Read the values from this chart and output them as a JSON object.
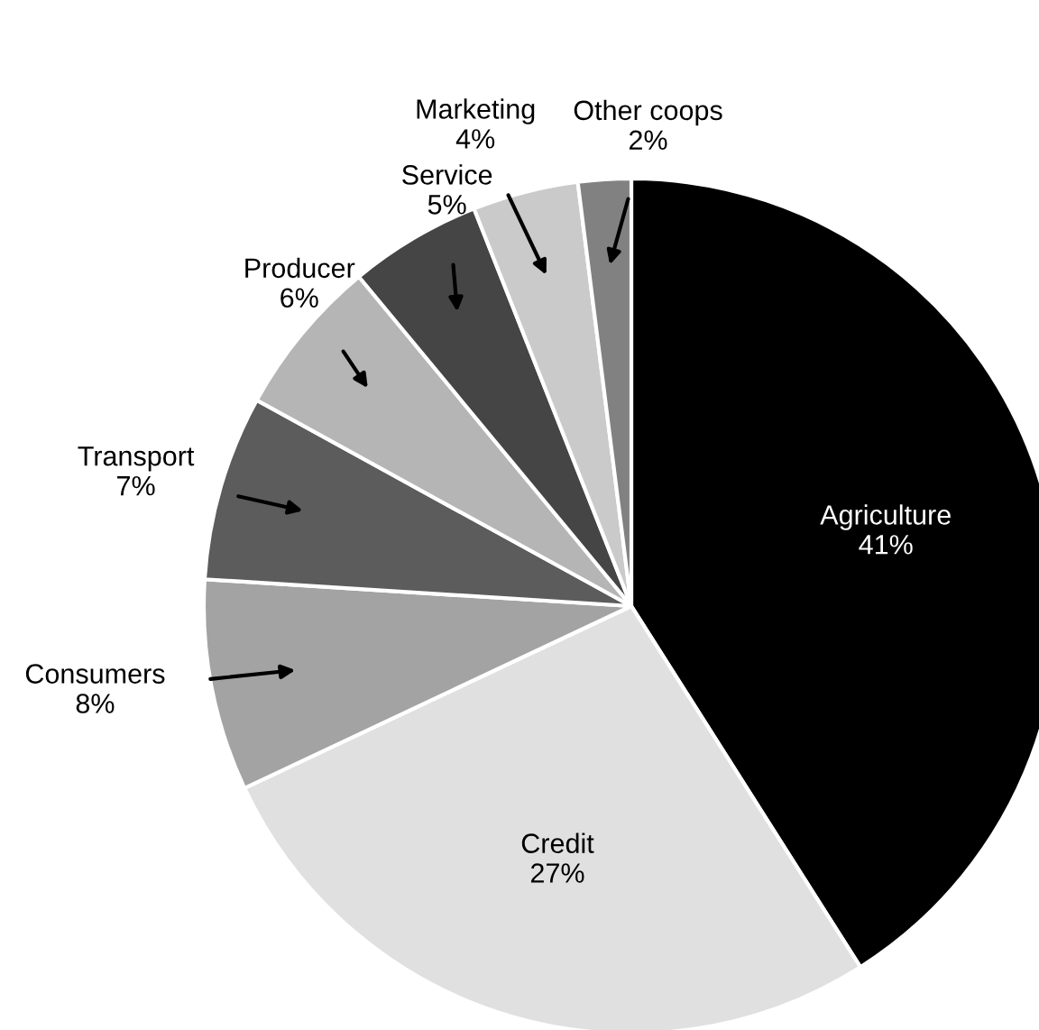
{
  "chart_data": {
    "type": "pie",
    "categories": [
      "Agriculture",
      "Credit",
      "Consumers",
      "Transport",
      "Producer",
      "Service",
      "Marketing",
      "Other coops"
    ],
    "values": [
      41,
      27,
      8,
      7,
      6,
      5,
      4,
      2
    ],
    "colors": [
      "#000000",
      "#e0e0e0",
      "#a3a3a3",
      "#5c5c5c",
      "#b5b5b5",
      "#454545",
      "#cacaca",
      "#818181"
    ],
    "value_labels": [
      "41%",
      "27%",
      "8%",
      "7%",
      "6%",
      "5%",
      "4%",
      "2%"
    ],
    "legend": false
  }
}
